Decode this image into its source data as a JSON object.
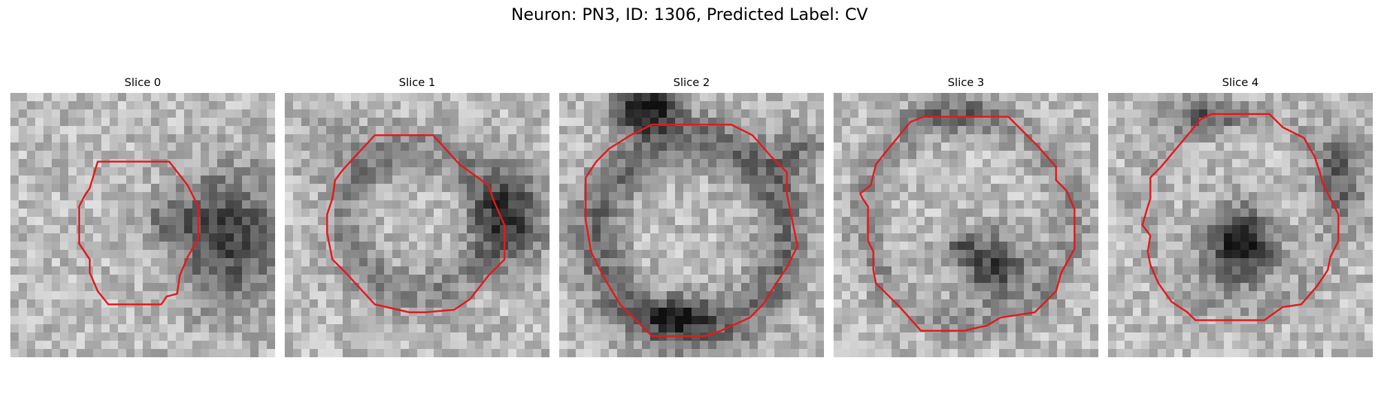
{
  "figure": {
    "title": "Neuron: PN3, ID: 1306, Predicted Label: CV"
  },
  "panels": [
    {
      "title": "Slice 0"
    },
    {
      "title": "Slice 1"
    },
    {
      "title": "Slice 2"
    },
    {
      "title": "Slice 3"
    },
    {
      "title": "Slice 4"
    }
  ],
  "colors": {
    "contour": "#e31a1c",
    "image_light": "#ececec",
    "image_dark": "#101010"
  }
}
